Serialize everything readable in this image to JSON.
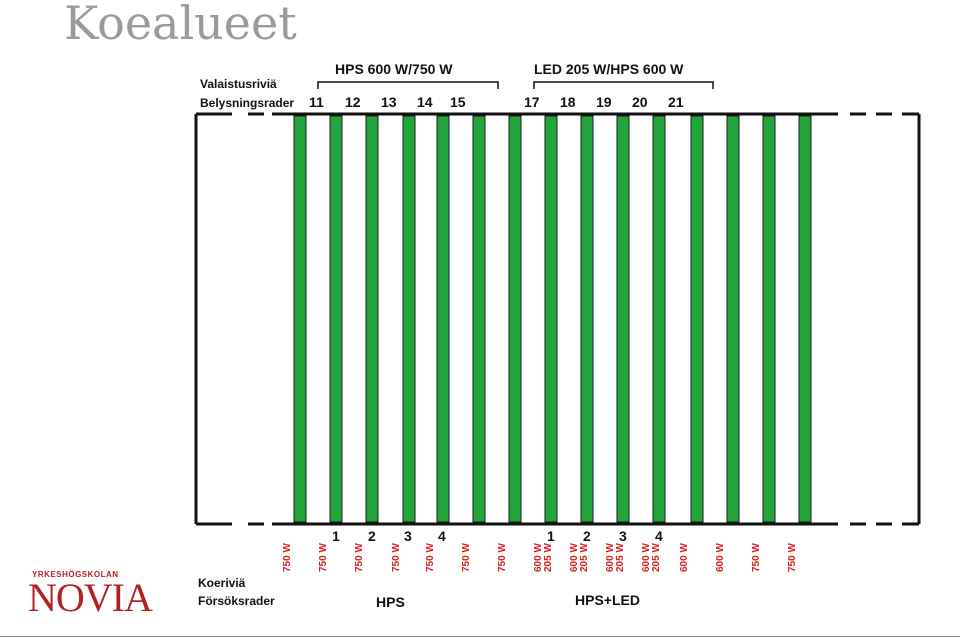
{
  "title": "Koealueet",
  "header": {
    "rows_fi": "Valaistusriviä",
    "rows_sv": "Belysningsrader",
    "group1": "HPS 600 W/750 W",
    "group2": "LED 205 W/HPS 600 W",
    "light_row_numbers": [
      "11",
      "12",
      "13",
      "14",
      "15",
      "17",
      "18",
      "19",
      "20",
      "21"
    ]
  },
  "lamp_labels": [
    [
      "750 W"
    ],
    [
      "750 W"
    ],
    [
      "750 W"
    ],
    [
      "750 W"
    ],
    [
      "750 W"
    ],
    [
      "750 W"
    ],
    [
      "750 W"
    ],
    [
      "600 W",
      "205 W"
    ],
    [
      "600 W",
      "205 W"
    ],
    [
      "600 W",
      "205 W"
    ],
    [
      "600 W",
      "205 W"
    ],
    [
      "600 W"
    ],
    [
      "600 W"
    ],
    [
      "750 W"
    ],
    [
      "750 W"
    ]
  ],
  "bed_numbers": [
    "1",
    "2",
    "3",
    "4",
    "1",
    "2",
    "3",
    "4"
  ],
  "footer": {
    "beds_fi": "Koeriviä",
    "beds_sv": "Försöksrader",
    "hps": "HPS",
    "hps_led": "HPS+LED"
  },
  "logo": {
    "small": "YRKESHÖGSKOLAN",
    "main": "NOVIA"
  },
  "colors": {
    "lamp": "#22a53a",
    "label": "#d32020",
    "logo": "#b22222"
  }
}
